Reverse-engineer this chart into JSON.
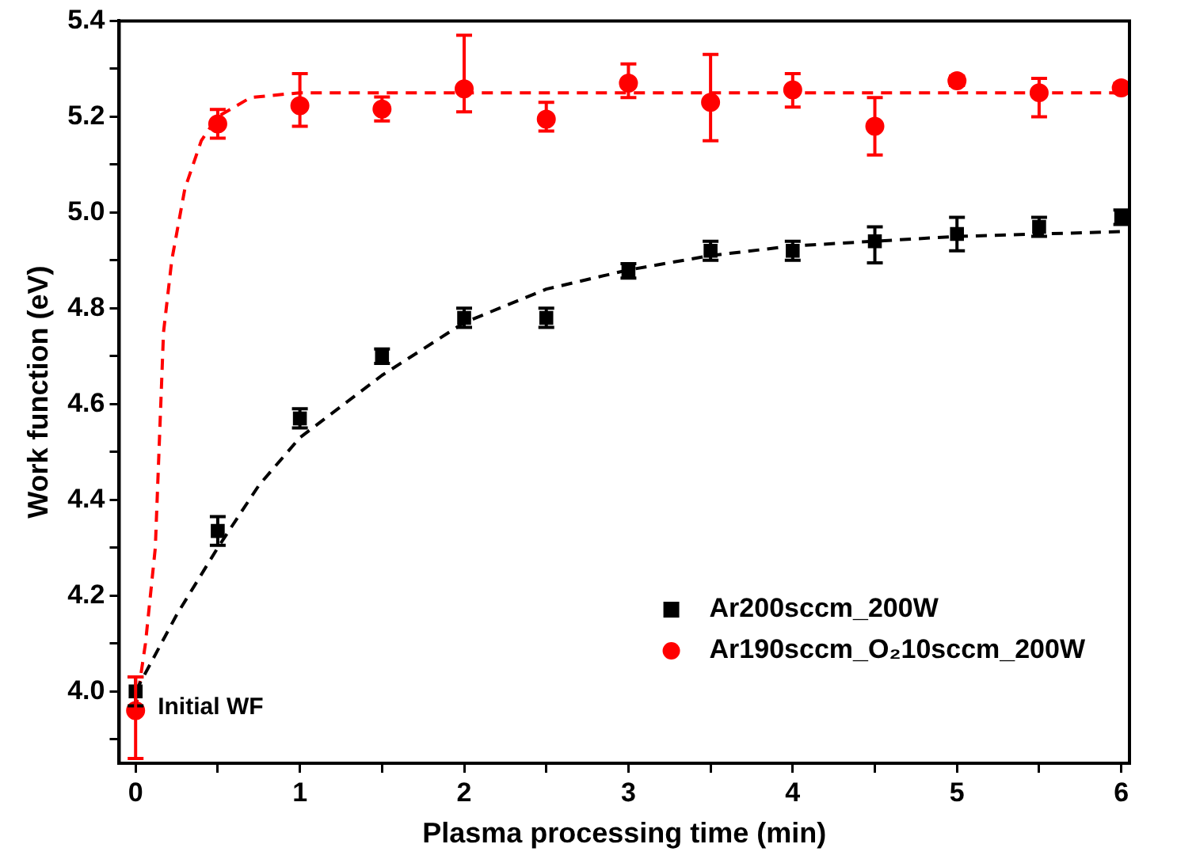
{
  "chart_data": {
    "type": "scatter",
    "xlabel": "Plasma processing time (min)",
    "ylabel": "Work function (eV)",
    "x": [
      0,
      0.5,
      1,
      1.5,
      2,
      2.5,
      3,
      3.5,
      4,
      4.5,
      5,
      5.5,
      6
    ],
    "series": [
      {
        "name": "Ar200sccm_200W",
        "color": "#000000",
        "marker": "square",
        "values": [
          4.0,
          4.335,
          4.57,
          4.7,
          4.78,
          4.78,
          4.878,
          4.92,
          4.92,
          4.94,
          4.955,
          4.97,
          4.99
        ],
        "errors": [
          0.03,
          0.03,
          0.02,
          0.015,
          0.02,
          0.02,
          0.015,
          0.02,
          0.02,
          [
            4.895,
            4.97
          ],
          [
            4.92,
            4.99
          ],
          0.02,
          0.015
        ]
      },
      {
        "name": "Ar190sccm_O₂10sccm_200W",
        "color": "#ff0000",
        "marker": "circle",
        "values": [
          3.96,
          5.185,
          5.223,
          5.216,
          5.258,
          5.195,
          5.27,
          5.23,
          5.256,
          5.18,
          5.275,
          5.25,
          5.26
        ],
        "errors": [
          [
            3.86,
            4.03
          ],
          0.03,
          [
            5.18,
            5.29
          ],
          0.025,
          [
            5.21,
            5.37
          ],
          [
            5.17,
            5.23
          ],
          [
            5.24,
            5.31
          ],
          [
            5.15,
            5.33
          ],
          [
            5.22,
            5.29
          ],
          [
            5.12,
            5.24
          ],
          0.01,
          [
            5.2,
            5.28
          ],
          0.01
        ]
      },
      {
        "type": "line",
        "color": "#000000",
        "line_style": "dashed",
        "marker": "none",
        "x": [
          0,
          0.25,
          0.5,
          0.75,
          1,
          1.5,
          2,
          2.5,
          3,
          3.5,
          4,
          4.5,
          5,
          5.5,
          6
        ],
        "values": [
          4.0,
          4.16,
          4.3,
          4.43,
          4.53,
          4.66,
          4.77,
          4.84,
          4.88,
          4.91,
          4.93,
          4.94,
          4.95,
          4.955,
          4.96
        ]
      },
      {
        "type": "line",
        "color": "#ff0000",
        "line_style": "dashed",
        "marker": "none",
        "x": [
          0,
          0.06,
          0.12,
          0.17,
          0.22,
          0.3,
          0.4,
          0.5,
          0.7,
          1,
          2,
          6
        ],
        "values": [
          3.96,
          4.1,
          4.3,
          4.75,
          4.9,
          5.05,
          5.15,
          5.2,
          5.24,
          5.25,
          5.25,
          5.25
        ]
      }
    ],
    "annotations": [
      {
        "text": "Initial WF",
        "x": 0,
        "y": 3.96
      }
    ],
    "xlim": [
      -0.1,
      6.05
    ],
    "ylim": [
      3.85,
      5.4
    ],
    "xticks": [
      0,
      {
        "value": 0.5,
        "label": null
      },
      1,
      {
        "value": 1.5,
        "label": null
      },
      2,
      {
        "value": 2.5,
        "label": null
      },
      3,
      {
        "value": 3.5,
        "label": null
      },
      4,
      {
        "value": 4.5,
        "label": null
      },
      5,
      {
        "value": 5.5,
        "label": null
      },
      6
    ],
    "yticks": [
      {
        "value": 3.9,
        "label": null
      },
      {
        "value": 4,
        "label": "4.0"
      },
      {
        "value": 4.1,
        "label": null
      },
      4.2,
      {
        "value": 4.3,
        "label": null
      },
      4.4,
      {
        "value": 4.5,
        "label": null
      },
      4.6,
      {
        "value": 4.7,
        "label": null
      },
      4.8,
      {
        "value": 4.9,
        "label": null
      },
      {
        "value": 5,
        "label": "5.0"
      },
      {
        "value": 5.1,
        "label": null
      },
      5.2,
      {
        "value": 5.3,
        "label": null
      },
      5.4
    ],
    "grid": false,
    "legend": "bottom right"
  }
}
